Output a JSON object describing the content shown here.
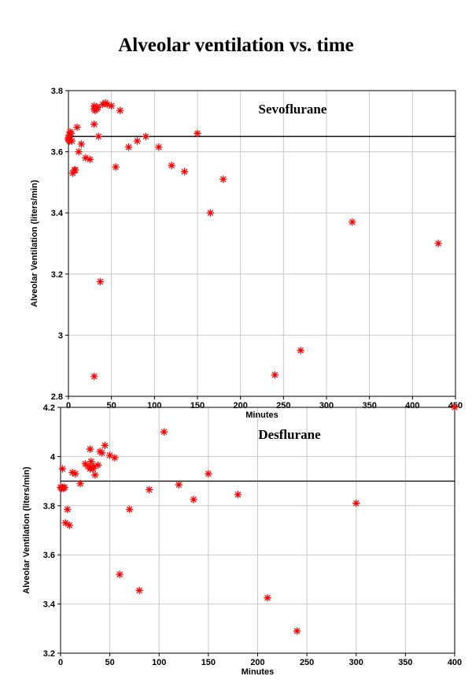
{
  "title": "Alveolar ventilation vs. time",
  "chart_data": [
    {
      "type": "scatter",
      "title": "Sevoflurane",
      "xlabel": "Minutes",
      "ylabel": "Alveolar Ventilation (liters/min)",
      "xlim": [
        0,
        450
      ],
      "ylim": [
        2.8,
        3.8
      ],
      "xticks": [
        0,
        50,
        100,
        150,
        200,
        250,
        300,
        350,
        400,
        450
      ],
      "yticks": [
        2.8,
        3,
        3.2,
        3.4,
        3.6,
        3.8
      ],
      "ytick_labels": [
        "2.8",
        "3",
        "3.2",
        "3.4",
        "3.6",
        "3.8"
      ],
      "grid": true,
      "reference_line_y": 3.65,
      "color": "#ff0000",
      "points": [
        [
          0,
          3.645
        ],
        [
          0,
          3.64
        ],
        [
          1,
          3.655
        ],
        [
          1,
          3.635
        ],
        [
          2,
          3.665
        ],
        [
          2,
          3.64
        ],
        [
          3,
          3.66
        ],
        [
          4,
          3.635
        ],
        [
          5,
          3.53
        ],
        [
          7,
          3.54
        ],
        [
          8,
          3.54
        ],
        [
          10,
          3.68
        ],
        [
          12,
          3.6
        ],
        [
          15,
          3.625
        ],
        [
          20,
          3.58
        ],
        [
          25,
          3.575
        ],
        [
          30,
          3.74
        ],
        [
          30,
          3.75
        ],
        [
          31,
          3.735
        ],
        [
          32,
          3.745
        ],
        [
          33,
          3.74
        ],
        [
          34,
          3.745
        ],
        [
          30,
          3.69
        ],
        [
          35,
          3.65
        ],
        [
          30,
          2.865
        ],
        [
          37,
          3.175
        ],
        [
          40,
          3.755
        ],
        [
          43,
          3.76
        ],
        [
          45,
          3.755
        ],
        [
          50,
          3.75
        ],
        [
          55,
          3.55
        ],
        [
          60,
          3.735
        ],
        [
          70,
          3.615
        ],
        [
          80,
          3.635
        ],
        [
          90,
          3.65
        ],
        [
          105,
          3.615
        ],
        [
          120,
          3.555
        ],
        [
          135,
          3.535
        ],
        [
          150,
          3.66
        ],
        [
          165,
          3.4
        ],
        [
          180,
          3.51
        ],
        [
          240,
          2.87
        ],
        [
          270,
          2.95
        ],
        [
          330,
          3.37
        ],
        [
          430,
          3.3
        ]
      ]
    },
    {
      "type": "scatter",
      "title": "Desflurane",
      "xlabel": "Minutes",
      "ylabel": "Alveolar Ventilation (liters/min)",
      "xlim": [
        0,
        400
      ],
      "ylim": [
        3.2,
        4.2
      ],
      "xticks": [
        0,
        50,
        100,
        150,
        200,
        250,
        300,
        350,
        400
      ],
      "yticks": [
        3.2,
        3.4,
        3.6,
        3.8,
        4,
        4.2
      ],
      "ytick_labels": [
        "3.2",
        "3.4",
        "3.6",
        "3.8",
        "4",
        "4.2"
      ],
      "grid": true,
      "reference_line_y": 3.9,
      "color": "#ff0000",
      "points": [
        [
          0,
          3.875
        ],
        [
          1,
          3.87
        ],
        [
          2,
          3.875
        ],
        [
          3,
          3.87
        ],
        [
          4,
          3.875
        ],
        [
          2,
          3.95
        ],
        [
          5,
          3.73
        ],
        [
          7,
          3.785
        ],
        [
          9,
          3.72
        ],
        [
          12,
          3.935
        ],
        [
          15,
          3.93
        ],
        [
          20,
          3.89
        ],
        [
          25,
          3.97
        ],
        [
          28,
          3.96
        ],
        [
          30,
          4.03
        ],
        [
          30,
          3.95
        ],
        [
          31,
          3.98
        ],
        [
          32,
          3.955
        ],
        [
          33,
          3.95
        ],
        [
          34,
          3.96
        ],
        [
          35,
          3.925
        ],
        [
          38,
          3.965
        ],
        [
          40,
          4.02
        ],
        [
          42,
          4.015
        ],
        [
          45,
          4.045
        ],
        [
          50,
          4.005
        ],
        [
          55,
          3.995
        ],
        [
          60,
          3.52
        ],
        [
          70,
          3.785
        ],
        [
          80,
          3.455
        ],
        [
          90,
          3.865
        ],
        [
          105,
          4.1
        ],
        [
          120,
          3.885
        ],
        [
          135,
          3.825
        ],
        [
          150,
          3.93
        ],
        [
          180,
          3.845
        ],
        [
          210,
          3.425
        ],
        [
          240,
          3.29
        ],
        [
          300,
          3.81
        ],
        [
          400,
          4.2
        ]
      ]
    }
  ]
}
